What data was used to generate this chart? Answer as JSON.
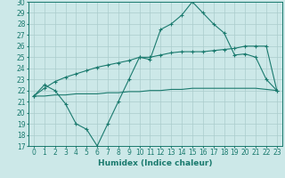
{
  "xlabel": "Humidex (Indice chaleur)",
  "x": [
    0,
    1,
    2,
    3,
    4,
    5,
    6,
    7,
    8,
    9,
    10,
    11,
    12,
    13,
    14,
    15,
    16,
    17,
    18,
    19,
    20,
    21,
    22,
    23
  ],
  "line1": [
    21.5,
    22.5,
    22.0,
    20.8,
    19.0,
    18.5,
    17.0,
    19.0,
    21.0,
    23.0,
    25.0,
    24.8,
    27.5,
    28.0,
    28.8,
    30.0,
    29.0,
    28.0,
    27.2,
    25.2,
    25.3,
    25.0,
    23.0,
    22.0
  ],
  "line2": [
    21.5,
    22.2,
    22.8,
    23.2,
    23.5,
    23.8,
    24.1,
    24.3,
    24.5,
    24.7,
    25.0,
    25.0,
    25.2,
    25.4,
    25.5,
    25.5,
    25.5,
    25.6,
    25.7,
    25.8,
    26.0,
    26.0,
    26.0,
    22.0
  ],
  "line3": [
    21.5,
    21.5,
    21.6,
    21.6,
    21.7,
    21.7,
    21.7,
    21.8,
    21.8,
    21.9,
    21.9,
    22.0,
    22.0,
    22.1,
    22.1,
    22.2,
    22.2,
    22.2,
    22.2,
    22.2,
    22.2,
    22.2,
    22.1,
    22.0
  ],
  "line_color": "#1a7a6e",
  "bg_color": "#cce8e8",
  "grid_color": "#aacccc",
  "ylim": [
    17,
    30
  ],
  "xlim": [
    -0.5,
    23.5
  ],
  "yticks": [
    17,
    18,
    19,
    20,
    21,
    22,
    23,
    24,
    25,
    26,
    27,
    28,
    29,
    30
  ],
  "xticks": [
    0,
    1,
    2,
    3,
    4,
    5,
    6,
    7,
    8,
    9,
    10,
    11,
    12,
    13,
    14,
    15,
    16,
    17,
    18,
    19,
    20,
    21,
    22,
    23
  ],
  "tick_fontsize": 5.5,
  "xlabel_fontsize": 6.5
}
